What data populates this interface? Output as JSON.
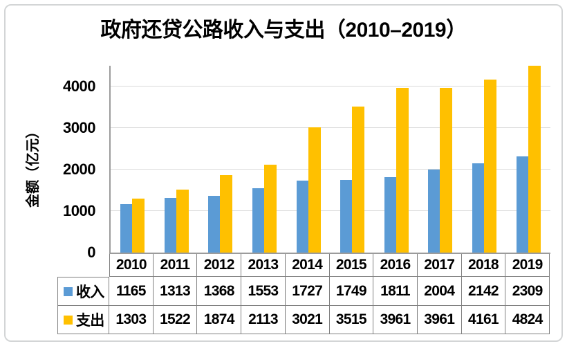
{
  "chart_data": {
    "type": "bar",
    "title": "政府还贷公路收入与支出（2010–2019）",
    "ylabel": "金额（亿元）",
    "xlabel": "",
    "categories": [
      "2010",
      "2011",
      "2012",
      "2013",
      "2014",
      "2015",
      "2016",
      "2017",
      "2018",
      "2019"
    ],
    "series": [
      {
        "name": "收入",
        "color": "#5B9BD5",
        "values": [
          1165,
          1313,
          1368,
          1553,
          1727,
          1749,
          1811,
          2004,
          2142,
          2309
        ]
      },
      {
        "name": "支出",
        "color": "#FFC000",
        "values": [
          1303,
          1522,
          1874,
          2113,
          3021,
          3515,
          3961,
          3961,
          4161,
          4824
        ]
      }
    ],
    "ytick_labels": [
      "0",
      "1000",
      "2000",
      "3000",
      "4000"
    ],
    "ytick_values": [
      0,
      1000,
      2000,
      3000,
      4000
    ],
    "ylim": [
      0,
      4500
    ],
    "grid": true,
    "legend_position": "data-table-left",
    "data_table_shown": true
  },
  "colors": {
    "background": "#FFFFFF",
    "frame_border": "#D3D5D6",
    "gridline": "#D9D9D9",
    "axis_line": "#9B9B9B",
    "table_border": "#7F7F7F",
    "text": "#000000"
  }
}
